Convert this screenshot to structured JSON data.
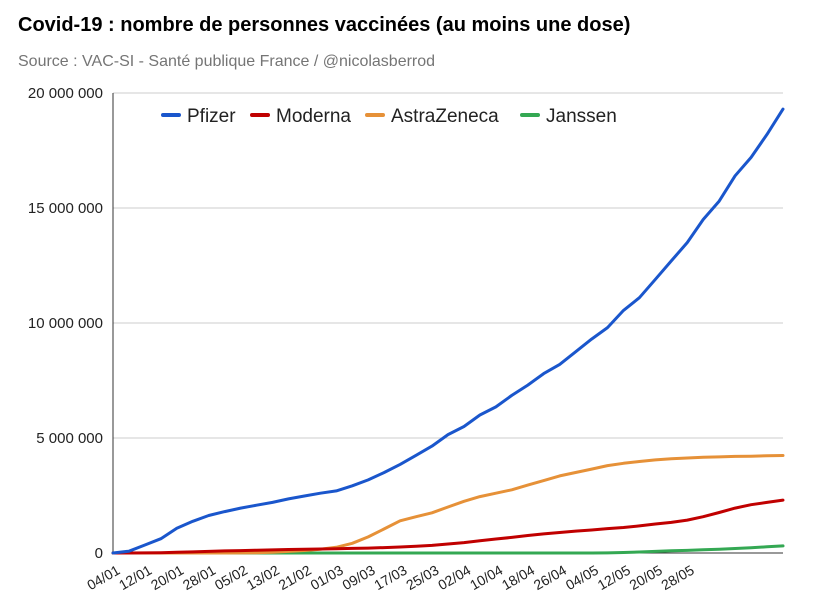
{
  "header": {
    "title": "Covid-19 : nombre de personnes vaccinées (au moins une dose)",
    "subtitle": "Source : VAC-SI - Santé publique France / @nicolasberrod"
  },
  "chart_data": {
    "type": "line",
    "title": "Covid-19 : nombre de personnes vaccinées (au moins une dose)",
    "subtitle": "Source : VAC-SI - Santé publique France / @nicolasberrod",
    "xlabel": "",
    "ylabel": "",
    "ylim": [
      0,
      20000000
    ],
    "yticks": [
      0,
      5000000,
      10000000,
      15000000,
      20000000
    ],
    "ytick_labels": [
      "0",
      "5 000 000",
      "10 000 000",
      "15 000 000",
      "20 000 000"
    ],
    "x_start": "04/01",
    "x_end": "31/05",
    "x_step_days": 4,
    "x_tick_every_days": 8,
    "x_tick_labels": [
      "04/01",
      "12/01",
      "20/01",
      "28/01",
      "05/02",
      "13/02",
      "21/02",
      "01/03",
      "09/03",
      "17/03",
      "25/03",
      "02/04",
      "10/04",
      "18/04",
      "26/04",
      "04/05",
      "12/05",
      "20/05",
      "28/05"
    ],
    "legend_position": "top-left",
    "series": [
      {
        "name": "Pfizer",
        "color": "#1a56cc",
        "values": [
          0,
          80000,
          350000,
          620000,
          1080000,
          1380000,
          1630000,
          1800000,
          1950000,
          2080000,
          2200000,
          2350000,
          2480000,
          2600000,
          2700000,
          2920000,
          3180000,
          3500000,
          3850000,
          4250000,
          4650000,
          5150000,
          5500000,
          6000000,
          6350000,
          6850000,
          7300000,
          7800000,
          8200000,
          8750000,
          9300000,
          9800000,
          10550000,
          11100000,
          11900000,
          12700000,
          13500000,
          14500000,
          15300000,
          16400000,
          17200000,
          18200000,
          19300000
        ]
      },
      {
        "name": "Moderna",
        "color": "#c00000",
        "values": [
          0,
          0,
          5000,
          15000,
          30000,
          50000,
          70000,
          90000,
          105000,
          120000,
          135000,
          150000,
          160000,
          175000,
          185000,
          200000,
          215000,
          235000,
          260000,
          290000,
          330000,
          390000,
          450000,
          530000,
          610000,
          680000,
          760000,
          830000,
          890000,
          950000,
          1000000,
          1060000,
          1110000,
          1180000,
          1260000,
          1330000,
          1430000,
          1580000,
          1760000,
          1950000,
          2100000,
          2200000,
          2300000
        ]
      },
      {
        "name": "AstraZeneca",
        "color": "#e69138",
        "values": [
          0,
          0,
          0,
          0,
          0,
          0,
          0,
          0,
          5000,
          15000,
          35000,
          70000,
          110000,
          160000,
          250000,
          420000,
          700000,
          1050000,
          1400000,
          1580000,
          1750000,
          2000000,
          2250000,
          2450000,
          2600000,
          2750000,
          2950000,
          3150000,
          3350000,
          3500000,
          3650000,
          3800000,
          3900000,
          3980000,
          4050000,
          4100000,
          4130000,
          4160000,
          4180000,
          4200000,
          4210000,
          4230000,
          4240000
        ]
      },
      {
        "name": "Janssen",
        "color": "#34a853",
        "values": [
          0,
          0,
          0,
          0,
          0,
          0,
          0,
          0,
          0,
          0,
          0,
          0,
          0,
          0,
          0,
          0,
          0,
          0,
          0,
          0,
          0,
          0,
          0,
          0,
          0,
          0,
          0,
          0,
          0,
          0,
          0,
          5000,
          20000,
          45000,
          70000,
          95000,
          115000,
          140000,
          165000,
          195000,
          230000,
          270000,
          310000
        ]
      }
    ]
  }
}
